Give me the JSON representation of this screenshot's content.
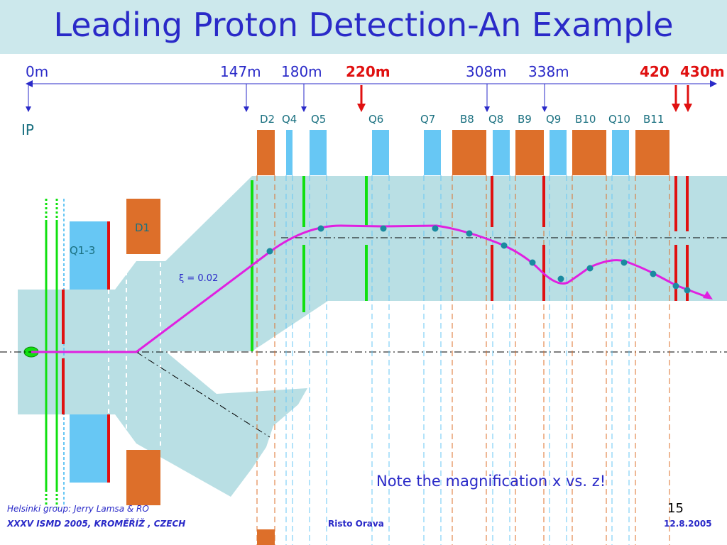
{
  "title": "Leading Proton Detection-An Example",
  "distances": [
    {
      "label": "0m",
      "red": false
    },
    {
      "label": "147m",
      "red": false
    },
    {
      "label": "180m",
      "red": false
    },
    {
      "label": "220m",
      "red": true
    },
    {
      "label": "308m",
      "red": false
    },
    {
      "label": "338m",
      "red": false
    },
    {
      "label": "420",
      "red": true
    },
    {
      "label": "430m",
      "red": true
    }
  ],
  "ip_label": "IP",
  "magnets": [
    "D2",
    "Q4",
    "Q5",
    "Q6",
    "Q7",
    "B8",
    "Q8",
    "B9",
    "Q9",
    "B10",
    "Q10",
    "B11"
  ],
  "left_magnets": {
    "q13": "Q1-3",
    "d1": "D1"
  },
  "xi_label": "ξ = 0.02",
  "note": "Note the magnification x vs. z!",
  "footer": {
    "group": "Helsinki group: Jerry Lamsa & RO",
    "conference": "XXXV ISMD 2005, KROMĚŘÍŽ , CZECH",
    "author": "Risto Orava",
    "date": "12.8.2005",
    "page": "15"
  },
  "colors": {
    "title_band": "#cce8ec",
    "text_blue": "#2a2ac8",
    "beampipe": "#b9dfe4",
    "dipole": "#dd6f2a",
    "quadrupole": "#67c7f4",
    "trajectory": "#e020e0",
    "detector_green": "#10e010",
    "detector_red": "#e01010",
    "teal_text": "#1a7080"
  }
}
